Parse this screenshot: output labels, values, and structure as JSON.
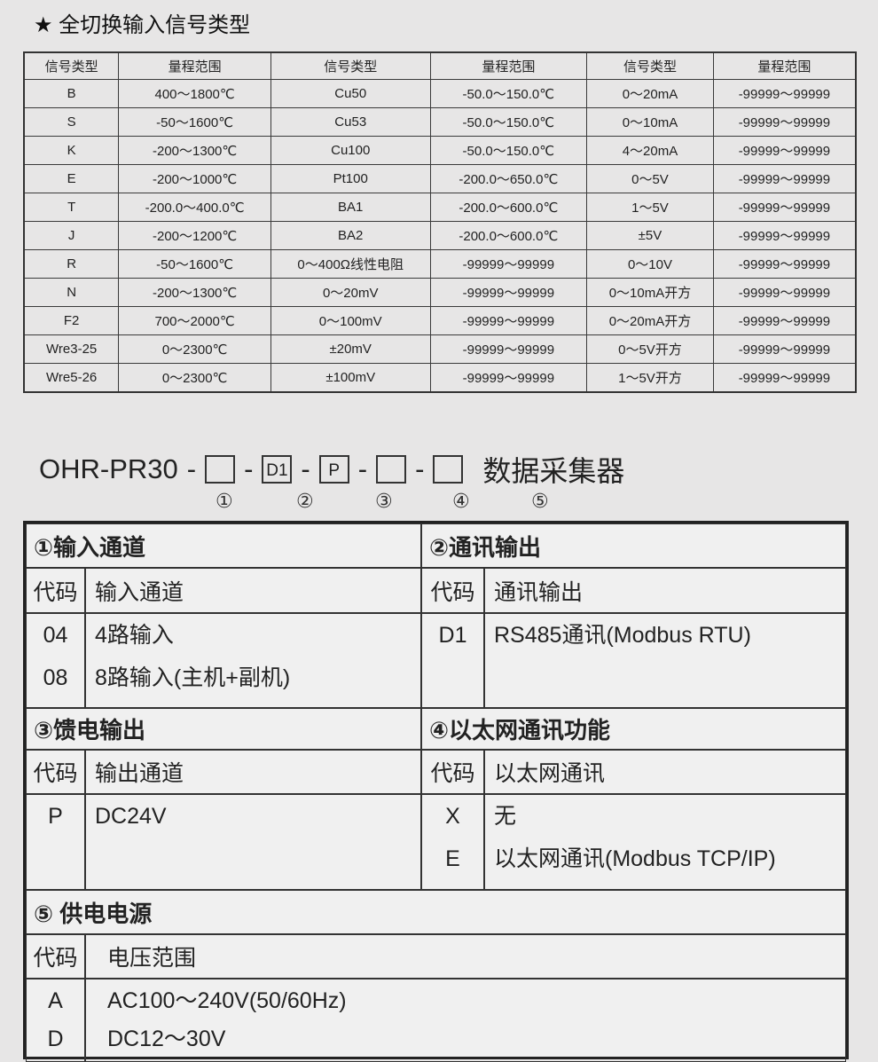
{
  "title": "★ 全切换输入信号类型",
  "signal_table": {
    "headers": [
      "信号类型",
      "量程范围",
      "信号类型",
      "量程范围",
      "信号类型",
      "量程范围"
    ],
    "rows": [
      [
        "B",
        "400～1800℃",
        "Cu50",
        "-50.0～150.0℃",
        "0～20mA",
        "-99999～99999"
      ],
      [
        "S",
        "-50～1600℃",
        "Cu53",
        "-50.0～150.0℃",
        "0～10mA",
        "-99999～99999"
      ],
      [
        "K",
        "-200～1300℃",
        "Cu100",
        "-50.0～150.0℃",
        "4～20mA",
        "-99999～99999"
      ],
      [
        "E",
        "-200～1000℃",
        "Pt100",
        "-200.0～650.0℃",
        "0～5V",
        "-99999～99999"
      ],
      [
        "T",
        "-200.0～400.0℃",
        "BA1",
        "-200.0～600.0℃",
        "1～5V",
        "-99999～99999"
      ],
      [
        "J",
        "-200～1200℃",
        "BA2",
        "-200.0～600.0℃",
        "±5V",
        "-99999～99999"
      ],
      [
        "R",
        "-50～1600℃",
        "0～400Ω线性电阻",
        "-99999～99999",
        "0～10V",
        "-99999～99999"
      ],
      [
        "N",
        "-200～1300℃",
        "0～20mV",
        "-99999～99999",
        "0～10mA开方",
        "-99999～99999"
      ],
      [
        "F2",
        "700～2000℃",
        "0～100mV",
        "-99999～99999",
        "0～20mA开方",
        "-99999～99999"
      ],
      [
        "Wre3-25",
        "0～2300℃",
        "±20mV",
        "-99999～99999",
        "0～5V开方",
        "-99999～99999"
      ],
      [
        "Wre5-26",
        "0～2300℃",
        "±100mV",
        "-99999～99999",
        "1～5V开方",
        "-99999～99999"
      ]
    ]
  },
  "model": {
    "prefix": "OHR-PR30",
    "dash": "-",
    "boxes": [
      "",
      "D1",
      "P",
      "",
      ""
    ],
    "name": "数据采集器",
    "markers": [
      "①",
      "②",
      "③",
      "④",
      "⑤"
    ]
  },
  "spec": {
    "code_label": "代码",
    "s1": {
      "title": "①输入通道",
      "col": "输入通道",
      "codes": [
        "04",
        "08"
      ],
      "values": [
        "4路输入",
        "8路输入(主机+副机)"
      ]
    },
    "s2": {
      "title": "②通讯输出",
      "col": "通讯输出",
      "codes": [
        "D1"
      ],
      "values": [
        "RS485通讯(Modbus RTU)"
      ]
    },
    "s3": {
      "title": "③馈电输出",
      "col": "输出通道",
      "codes": [
        "P"
      ],
      "values": [
        "DC24V"
      ]
    },
    "s4": {
      "title": "④以太网通讯功能",
      "col": "以太网通讯",
      "codes": [
        "X",
        "E"
      ],
      "values": [
        "无",
        "以太网通讯(Modbus TCP/IP)"
      ]
    },
    "s5": {
      "title": "⑤ 供电电源",
      "col": "电压范围",
      "codes": [
        "A",
        "D"
      ],
      "values": [
        "AC100～240V(50/60Hz)",
        "DC12～30V"
      ]
    }
  }
}
